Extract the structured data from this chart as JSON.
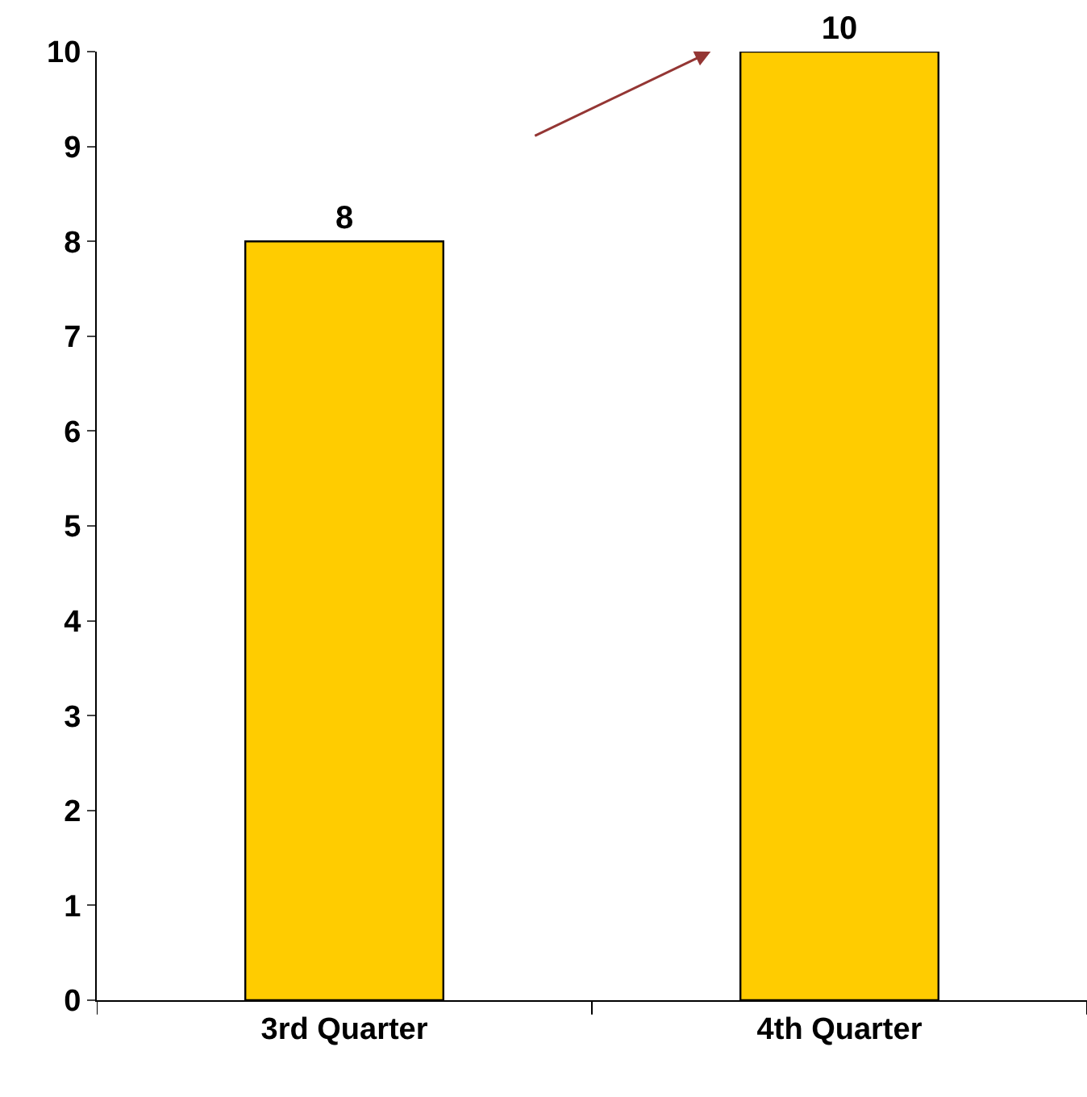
{
  "chart_data": {
    "type": "bar",
    "categories": [
      "3rd Quarter",
      "4th Quarter"
    ],
    "values": [
      8,
      10
    ],
    "color": "#ffcc00",
    "ylim": [
      0,
      10
    ],
    "yticks": [
      0,
      1,
      2,
      3,
      4,
      5,
      6,
      7,
      8,
      9,
      10
    ],
    "data_labels": true,
    "legend": false
  }
}
